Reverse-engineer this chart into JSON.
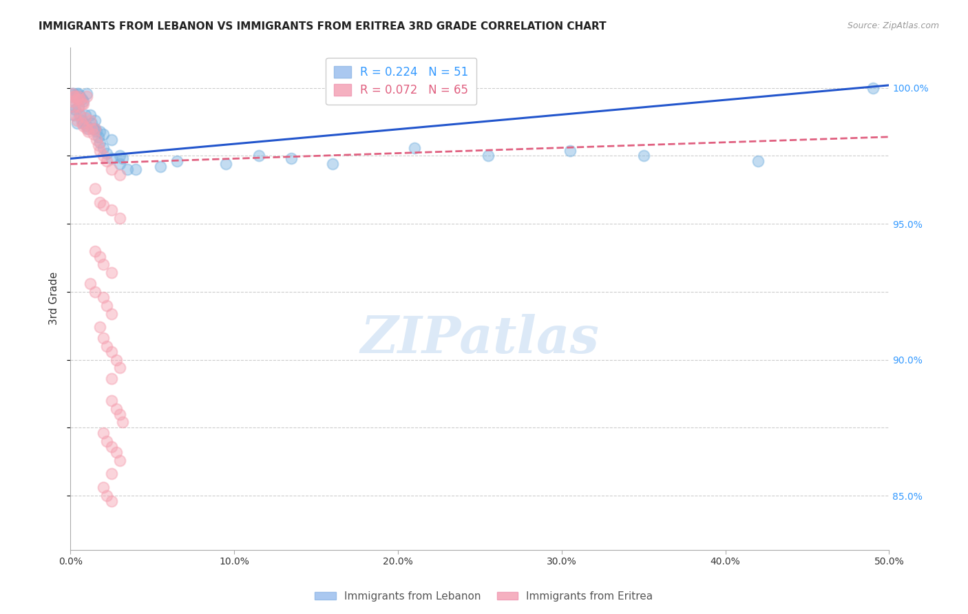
{
  "title": "IMMIGRANTS FROM LEBANON VS IMMIGRANTS FROM ERITREA 3RD GRADE CORRELATION CHART",
  "source": "Source: ZipAtlas.com",
  "ylabel": "3rd Grade",
  "xlim": [
    0.0,
    0.5
  ],
  "ylim": [
    0.83,
    1.015
  ],
  "xtick_labels": [
    "0.0%",
    "10.0%",
    "20.0%",
    "30.0%",
    "40.0%",
    "50.0%"
  ],
  "xtick_vals": [
    0.0,
    0.1,
    0.2,
    0.3,
    0.4,
    0.5
  ],
  "ytick_labels": [
    "85.0%",
    "90.0%",
    "95.0%",
    "100.0%"
  ],
  "ytick_vals": [
    0.85,
    0.9,
    0.95,
    1.0
  ],
  "grid_color": "#cccccc",
  "background_color": "#ffffff",
  "watermark_color": "#dce9f7",
  "lebanon_color": "#7ab3e0",
  "eritrea_color": "#f5a0b0",
  "lebanon_line_color": "#2255cc",
  "eritrea_line_color": "#e06080",
  "legend_label_lebanon": "R = 0.224   N = 51",
  "legend_label_eritrea": "R = 0.072   N = 65",
  "legend_box_lebanon": "#aac8f0",
  "legend_box_eritrea": "#f5b0c0",
  "leb_x": [
    0.001,
    0.001,
    0.002,
    0.002,
    0.003,
    0.003,
    0.004,
    0.004,
    0.005,
    0.005,
    0.006,
    0.006,
    0.007,
    0.007,
    0.008,
    0.008,
    0.009,
    0.01,
    0.01,
    0.011,
    0.012,
    0.013,
    0.014,
    0.015,
    0.016,
    0.017,
    0.018,
    0.02,
    0.022,
    0.025,
    0.03,
    0.035,
    0.04,
    0.055,
    0.065,
    0.095,
    0.115,
    0.135,
    0.16,
    0.21,
    0.255,
    0.305,
    0.35,
    0.42,
    0.49,
    0.015,
    0.018,
    0.02,
    0.025,
    0.03,
    0.032
  ],
  "leb_y": [
    0.998,
    0.993,
    0.998,
    0.99,
    0.997,
    0.992,
    0.998,
    0.987,
    0.998,
    0.993,
    0.997,
    0.99,
    0.996,
    0.988,
    0.995,
    0.987,
    0.99,
    0.998,
    0.986,
    0.985,
    0.99,
    0.987,
    0.985,
    0.988,
    0.984,
    0.982,
    0.98,
    0.978,
    0.976,
    0.974,
    0.972,
    0.97,
    0.97,
    0.971,
    0.973,
    0.972,
    0.975,
    0.974,
    0.972,
    0.978,
    0.975,
    0.977,
    0.975,
    0.973,
    1.0,
    0.985,
    0.984,
    0.983,
    0.981,
    0.975,
    0.974
  ],
  "eri_x": [
    0.001,
    0.001,
    0.002,
    0.002,
    0.003,
    0.003,
    0.004,
    0.004,
    0.005,
    0.005,
    0.006,
    0.006,
    0.007,
    0.007,
    0.008,
    0.008,
    0.009,
    0.01,
    0.01,
    0.011,
    0.012,
    0.013,
    0.014,
    0.015,
    0.016,
    0.017,
    0.018,
    0.02,
    0.022,
    0.025,
    0.03,
    0.015,
    0.018,
    0.02,
    0.025,
    0.03,
    0.015,
    0.018,
    0.02,
    0.025,
    0.012,
    0.015,
    0.02,
    0.022,
    0.025,
    0.018,
    0.02,
    0.022,
    0.025,
    0.028,
    0.03,
    0.025,
    0.025,
    0.028,
    0.03,
    0.032,
    0.02,
    0.022,
    0.025,
    0.028,
    0.03,
    0.025,
    0.02,
    0.022,
    0.025
  ],
  "eri_y": [
    0.998,
    0.995,
    0.997,
    0.993,
    0.997,
    0.99,
    0.996,
    0.988,
    0.997,
    0.993,
    0.996,
    0.99,
    0.994,
    0.987,
    0.994,
    0.986,
    0.989,
    0.997,
    0.985,
    0.984,
    0.988,
    0.985,
    0.983,
    0.985,
    0.981,
    0.979,
    0.977,
    0.975,
    0.973,
    0.97,
    0.968,
    0.963,
    0.958,
    0.957,
    0.955,
    0.952,
    0.94,
    0.938,
    0.935,
    0.932,
    0.928,
    0.925,
    0.923,
    0.92,
    0.917,
    0.912,
    0.908,
    0.905,
    0.903,
    0.9,
    0.897,
    0.893,
    0.885,
    0.882,
    0.88,
    0.877,
    0.873,
    0.87,
    0.868,
    0.866,
    0.863,
    0.858,
    0.853,
    0.85,
    0.848
  ]
}
